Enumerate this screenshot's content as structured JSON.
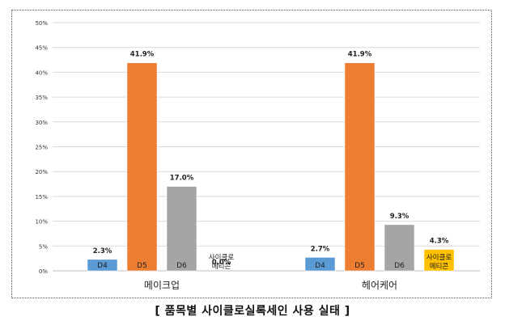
{
  "caption": "[ 품목별 사이클로실록세인 사용 실태 ]",
  "chart_data": {
    "type": "bar",
    "ylim": [
      0,
      50
    ],
    "yticks": [
      "0%",
      "5%",
      "10%",
      "15%",
      "20%",
      "25%",
      "30%",
      "35%",
      "40%",
      "45%",
      "50%"
    ],
    "grid": true,
    "groups": [
      {
        "name": "메이크업",
        "bars": [
          {
            "label": "D4",
            "value": 2.3,
            "value_label": "2.3%",
            "color": "#5B9BD5"
          },
          {
            "label": "D5",
            "value": 41.9,
            "value_label": "41.9%",
            "color": "#ED7D31"
          },
          {
            "label": "D6",
            "value": 17.0,
            "value_label": "17.0%",
            "color": "#A5A5A5"
          },
          {
            "label": "사이클로\n메티콘",
            "value": 0.0,
            "value_label": "0.0%",
            "color": "#FFC000"
          }
        ]
      },
      {
        "name": "헤어케어",
        "bars": [
          {
            "label": "D4",
            "value": 2.7,
            "value_label": "2.7%",
            "color": "#5B9BD5"
          },
          {
            "label": "D5",
            "value": 41.9,
            "value_label": "41.9%",
            "color": "#ED7D31"
          },
          {
            "label": "D6",
            "value": 9.3,
            "value_label": "9.3%",
            "color": "#A5A5A5"
          },
          {
            "label": "사이클로\n메티콘",
            "value": 4.3,
            "value_label": "4.3%",
            "color": "#FFC000"
          }
        ]
      }
    ]
  }
}
